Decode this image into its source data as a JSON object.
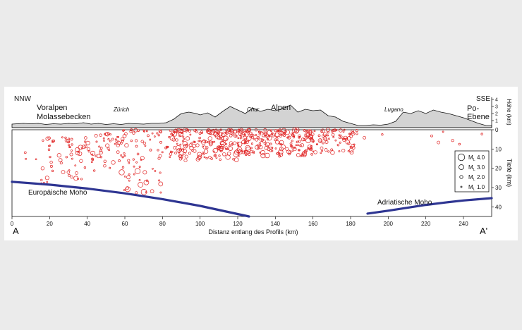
{
  "chart_data": [
    {
      "type": "area",
      "panel": "topography",
      "ylabel": "Höhe (km)",
      "yticks": [
        1,
        2,
        3,
        4
      ],
      "ylim": [
        0,
        4.5
      ],
      "xlim": [
        0,
        255
      ],
      "profile_x": [
        0,
        6,
        10,
        14,
        18,
        22,
        26,
        30,
        34,
        38,
        42,
        46,
        50,
        54,
        58,
        62,
        66,
        70,
        74,
        78,
        82,
        86,
        90,
        94,
        98,
        100,
        104,
        108,
        112,
        116,
        120,
        124,
        128,
        132,
        136,
        140,
        144,
        148,
        152,
        156,
        160,
        164,
        168,
        172,
        176,
        180,
        184,
        188,
        192,
        196,
        200,
        204,
        208,
        212,
        216,
        220,
        224,
        228,
        232,
        236,
        240,
        244,
        248,
        252,
        255
      ],
      "profile_y": [
        0.5,
        0.6,
        0.55,
        0.6,
        0.45,
        0.55,
        0.5,
        0.6,
        0.55,
        0.7,
        0.5,
        0.6,
        0.45,
        0.55,
        0.45,
        0.6,
        0.55,
        0.5,
        0.6,
        0.6,
        0.7,
        1.2,
        2.0,
        2.2,
        2.0,
        1.8,
        2.1,
        1.5,
        2.3,
        3.0,
        2.5,
        2.0,
        2.8,
        2.3,
        2.6,
        2.4,
        2.7,
        3.2,
        2.2,
        2.6,
        2.4,
        2.5,
        1.7,
        1.5,
        0.9,
        0.6,
        0.3,
        0.3,
        0.4,
        0.35,
        0.5,
        0.9,
        2.2,
        2.0,
        2.4,
        2.0,
        2.5,
        2.2,
        2.0,
        1.7,
        1.4,
        1.0,
        0.6,
        0.3,
        0.3
      ],
      "labels": {
        "left_end": "NNW",
        "right_end": "SSE",
        "region_left_1": "Voralpen",
        "region_left_2": "Molassebecken",
        "city_1": "Zürich",
        "city_2": "Chur",
        "region_center": "Alpen",
        "city_3": "Lugano",
        "region_right_1": "Po-",
        "region_right_2": "Ebene"
      }
    },
    {
      "type": "scatter",
      "panel": "seismicity cross-section",
      "title": "",
      "xlabel": "Distanz entlang des Profils (km)",
      "ylabel": "Tiefe (km)",
      "xlim": [
        0,
        255
      ],
      "ylim": [
        45,
        0
      ],
      "xticks": [
        0,
        20,
        40,
        60,
        80,
        100,
        120,
        140,
        160,
        180,
        200,
        220,
        240
      ],
      "yticks": [
        0,
        10,
        20,
        30,
        40
      ],
      "series": [
        {
          "name": "Europäische Moho",
          "type": "line",
          "color": "#2e3592",
          "x": [
            0,
            20,
            40,
            60,
            80,
            100,
            126
          ],
          "y": [
            27,
            28.5,
            30.5,
            33,
            36,
            39.5,
            45
          ]
        },
        {
          "name": "Adriatische Moho",
          "type": "line",
          "color": "#2e3592",
          "x": [
            189,
            200,
            210,
            220,
            230,
            240,
            255
          ],
          "y": [
            43.5,
            42,
            40.5,
            39,
            37.8,
            36.7,
            35.5
          ]
        }
      ],
      "events_color": "#e02020",
      "event_clusters": [
        {
          "x": [
            3,
            14
          ],
          "depth": [
            9,
            16
          ],
          "count": 3,
          "ml": [
            1.0,
            2.0
          ]
        },
        {
          "x": [
            15,
            32
          ],
          "depth": [
            3,
            28
          ],
          "count": 30,
          "ml": [
            1.0,
            2.5
          ]
        },
        {
          "x": [
            30,
            45
          ],
          "depth": [
            3,
            26
          ],
          "count": 40,
          "ml": [
            1.0,
            3.0
          ]
        },
        {
          "x": [
            45,
            58
          ],
          "depth": [
            2,
            22
          ],
          "count": 30,
          "ml": [
            1.0,
            2.5
          ]
        },
        {
          "x": [
            55,
            70
          ],
          "depth": [
            0,
            20
          ],
          "count": 35,
          "ml": [
            1.0,
            2.5
          ]
        },
        {
          "x": [
            55,
            80
          ],
          "depth": [
            20,
            33
          ],
          "count": 25,
          "ml": [
            1.0,
            3.5
          ]
        },
        {
          "x": [
            70,
            85
          ],
          "depth": [
            0,
            15
          ],
          "count": 25,
          "ml": [
            1.0,
            2.0
          ]
        },
        {
          "x": [
            84,
            120
          ],
          "depth": [
            0,
            16
          ],
          "count": 170,
          "ml": [
            1.0,
            3.0
          ]
        },
        {
          "x": [
            120,
            160
          ],
          "depth": [
            0,
            14
          ],
          "count": 210,
          "ml": [
            1.0,
            3.0
          ]
        },
        {
          "x": [
            160,
            182
          ],
          "depth": [
            0,
            12
          ],
          "count": 70,
          "ml": [
            1.0,
            2.5
          ]
        },
        {
          "x": [
            182,
            200
          ],
          "depth": [
            0,
            6
          ],
          "count": 4,
          "ml": [
            1.0,
            2.0
          ]
        },
        {
          "x": [
            212,
            250
          ],
          "depth": [
            1,
            12
          ],
          "count": 6,
          "ml": [
            1.0,
            2.0
          ]
        }
      ],
      "legend": {
        "position": "right",
        "items": [
          {
            "prefix": "M",
            "sub": "L",
            "value": "4.0",
            "ml": 4.0
          },
          {
            "prefix": "M",
            "sub": "L",
            "value": "3.0",
            "ml": 3.0
          },
          {
            "prefix": "M",
            "sub": "L",
            "value": "2.0",
            "ml": 2.0
          },
          {
            "prefix": "M",
            "sub": "L",
            "value": "1.0",
            "ml": 1.0
          }
        ]
      },
      "labels": {
        "start": "A",
        "end": "A'",
        "moho_eu": "Europäische Moho",
        "moho_ad": "Adriatische Moho"
      }
    }
  ]
}
